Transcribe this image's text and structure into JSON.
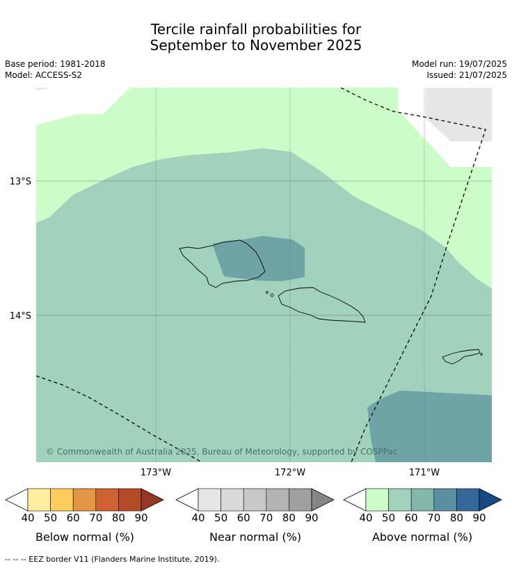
{
  "title": {
    "line1": "Tercile rainfall probabilities for",
    "line2": "September to November 2025"
  },
  "meta": {
    "base_period": "Base period: 1981-2018",
    "model": "Model: ACCESS-S2",
    "model_run": "Model run: 19/07/2025",
    "issued": "Issued: 21/07/2025"
  },
  "map": {
    "copyright": "© Commonwealth of Australia 2025, Bureau of Meteorology, supported by COSPPac",
    "lat_labels": [
      "13°S",
      "14°S"
    ],
    "lon_labels": [
      "173°W",
      "172°W",
      "171°W"
    ]
  },
  "colorbars": [
    {
      "label": "Below normal (%)",
      "ticks": [
        "40",
        "50",
        "60",
        "70",
        "80",
        "90"
      ],
      "colors": [
        "#ffffff",
        "#ffeda0",
        "#fecc5c",
        "#e39745",
        "#cf6232",
        "#b34b27",
        "#963823"
      ]
    },
    {
      "label": "Near normal (%)",
      "ticks": [
        "40",
        "50",
        "60",
        "70",
        "80",
        "90"
      ],
      "colors": [
        "#ffffff",
        "#e6e6e6",
        "#d9d9d9",
        "#c8c8c8",
        "#b4b4b4",
        "#a0a0a0",
        "#858585"
      ]
    },
    {
      "label": "Above normal (%)",
      "ticks": [
        "40",
        "50",
        "60",
        "70",
        "80",
        "90"
      ],
      "colors": [
        "#ffffff",
        "#ccfcc8",
        "#a0d2bc",
        "#84b8ad",
        "#5a8f9f",
        "#336898",
        "#174a82"
      ]
    }
  ],
  "footer": "--  --  -- EEZ border V11 (Flanders Marine Institute, 2019)."
}
